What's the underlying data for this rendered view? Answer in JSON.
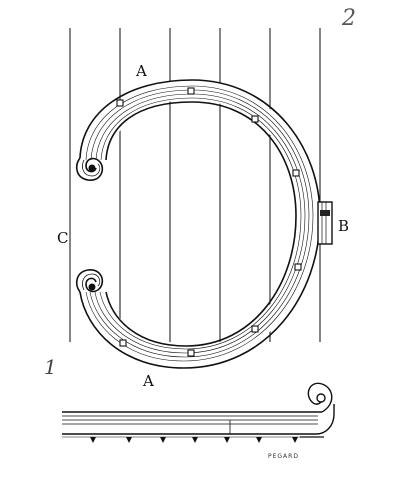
{
  "figure": {
    "labels": {
      "a_top": "A",
      "a_bottom": "A",
      "b": "B",
      "c": "C",
      "fig_number_top": "2",
      "fig_number_bottom": "1",
      "signature": "PEGARD"
    }
  }
}
